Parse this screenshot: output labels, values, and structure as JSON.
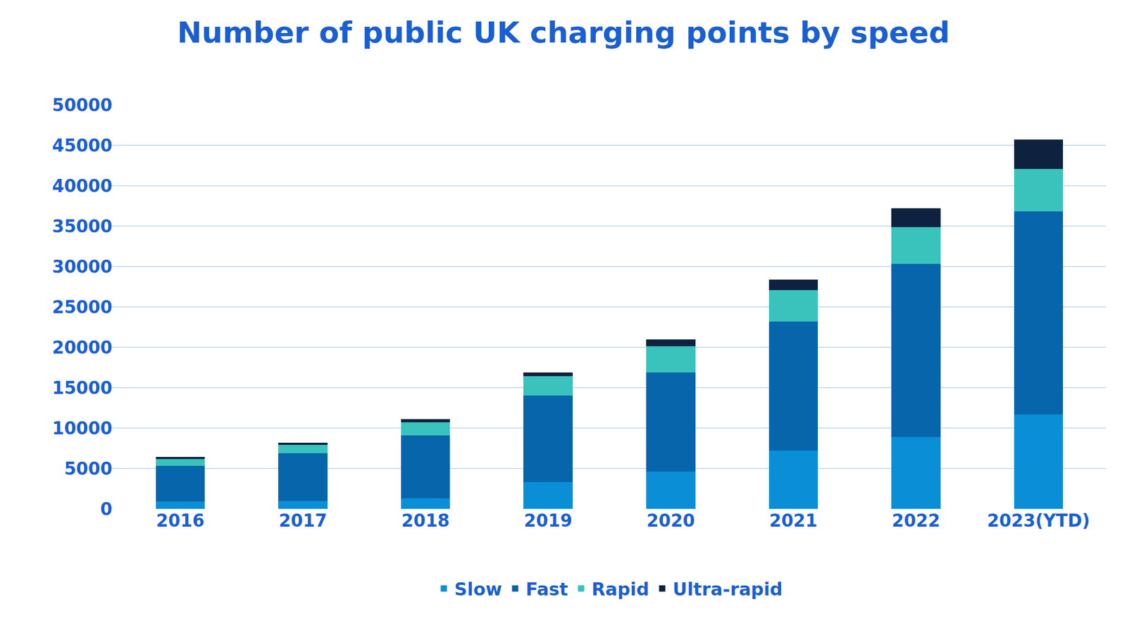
{
  "chart_data": {
    "type": "bar",
    "title": "Number of public UK charging points by speed",
    "categories": [
      "2016",
      "2017",
      "2018",
      "2019",
      "2020",
      "2021",
      "2022",
      "2023(YTD)"
    ],
    "series": [
      {
        "name": "Slow",
        "color": "#0a8fd6",
        "values": [
          900,
          1000,
          1300,
          3300,
          4600,
          7200,
          8900,
          11700
        ]
      },
      {
        "name": "Fast",
        "color": "#0765ab",
        "values": [
          4400,
          5900,
          7800,
          10700,
          12300,
          16000,
          21400,
          25100
        ]
      },
      {
        "name": "Rapid",
        "color": "#3ac2bd",
        "values": [
          900,
          1000,
          1600,
          2450,
          3250,
          3900,
          4600,
          5300
        ]
      },
      {
        "name": "Ultra-rapid",
        "color": "#0e2240",
        "values": [
          200,
          300,
          400,
          450,
          800,
          1300,
          2300,
          3600
        ]
      }
    ],
    "ylim": [
      0,
      50000
    ],
    "yticks": [
      0,
      5000,
      10000,
      15000,
      20000,
      25000,
      30000,
      35000,
      40000,
      45000,
      50000
    ],
    "stacked": true,
    "grid": true,
    "legend": "bottom"
  }
}
